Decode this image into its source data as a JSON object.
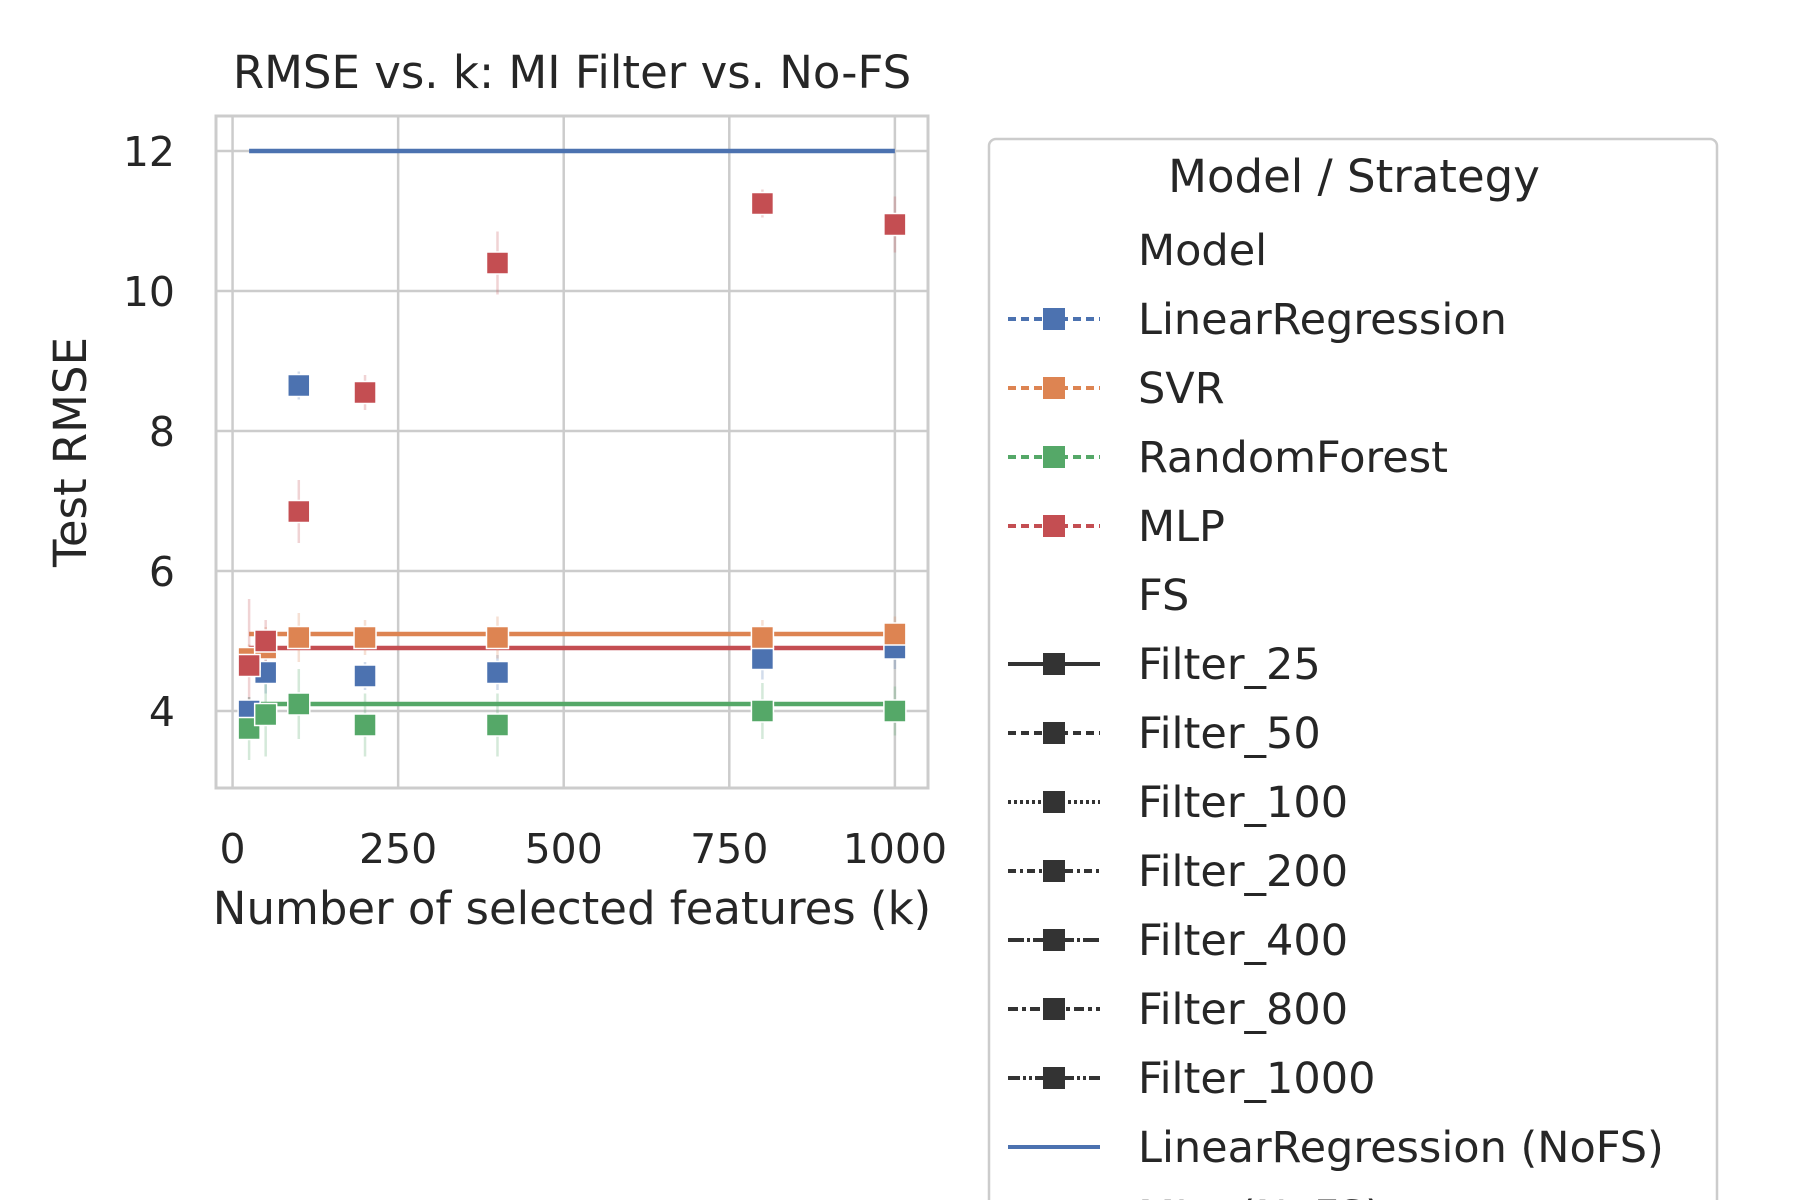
{
  "chart_data": {
    "type": "scatter",
    "title": "RMSE vs. k: MI Filter vs. No-FS",
    "xlabel": "Number of selected features (k)",
    "ylabel": "Test RMSE",
    "xlim": [
      -25,
      1050
    ],
    "ylim": [
      2.9,
      12.5
    ],
    "xticks": [
      0,
      250,
      500,
      750,
      1000
    ],
    "yticks": [
      4,
      6,
      8,
      10,
      12
    ],
    "grid": true,
    "legend_placement": "outside-right",
    "colors": {
      "LinearRegression": "#4c72b0",
      "SVR": "#dd8452",
      "RandomForest": "#55a868",
      "MLP": "#c44e52",
      "FS": "#333333"
    },
    "series": [
      {
        "name": "LinearRegression",
        "x": [
          25,
          50,
          100,
          200,
          400,
          800,
          1000
        ],
        "y": [
          4.0,
          4.55,
          8.65,
          4.5,
          4.55,
          4.75,
          4.9
        ],
        "err": [
          0.2,
          0.3,
          0.2,
          0.2,
          0.25,
          0.3,
          0.3
        ]
      },
      {
        "name": "SVR",
        "x": [
          25,
          50,
          100,
          200,
          400,
          800,
          1000
        ],
        "y": [
          4.75,
          4.9,
          5.05,
          5.05,
          5.05,
          5.05,
          5.1
        ],
        "err": [
          0.2,
          0.3,
          0.35,
          0.25,
          0.3,
          0.25,
          0.25
        ]
      },
      {
        "name": "RandomForest",
        "x": [
          25,
          50,
          100,
          200,
          400,
          800,
          1000
        ],
        "y": [
          3.75,
          3.95,
          4.1,
          3.8,
          3.8,
          4.0,
          4.0
        ],
        "err": [
          0.45,
          0.6,
          0.5,
          0.45,
          0.45,
          0.4,
          0.35
        ]
      },
      {
        "name": "MLP",
        "x": [
          25,
          50,
          100,
          200,
          400,
          800,
          1000
        ],
        "y": [
          4.65,
          5.0,
          6.85,
          8.55,
          10.4,
          11.25,
          10.95
        ],
        "err": [
          0.95,
          0.3,
          0.45,
          0.25,
          0.45,
          0.2,
          0.4
        ]
      }
    ],
    "nofs_lines": [
      {
        "model": "LinearRegression",
        "y": 12.0
      },
      {
        "model": "SVR",
        "y": 5.1
      },
      {
        "model": "RandomForest",
        "y": 4.1
      },
      {
        "model": "MLP",
        "y": 4.9
      }
    ],
    "nofs_x": [
      25,
      1000
    ],
    "legend": {
      "title": "Model / Strategy",
      "entries": [
        {
          "label": "Model",
          "kind": "header"
        },
        {
          "label": "LinearRegression",
          "kind": "marker",
          "color": "#4c72b0",
          "dash": "8,5"
        },
        {
          "label": "SVR",
          "kind": "marker",
          "color": "#dd8452",
          "dash": "8,5"
        },
        {
          "label": "RandomForest",
          "kind": "marker",
          "color": "#55a868",
          "dash": "8,5"
        },
        {
          "label": "MLP",
          "kind": "marker",
          "color": "#c44e52",
          "dash": "8,5"
        },
        {
          "label": "FS",
          "kind": "header"
        },
        {
          "label": "Filter_25",
          "kind": "marker",
          "color": "#333333",
          "dash": "none"
        },
        {
          "label": "Filter_50",
          "kind": "marker",
          "color": "#333333",
          "dash": "8,5"
        },
        {
          "label": "Filter_100",
          "kind": "marker",
          "color": "#333333",
          "dash": "3,3"
        },
        {
          "label": "Filter_200",
          "kind": "marker",
          "color": "#333333",
          "dash": "8,4,3,4"
        },
        {
          "label": "Filter_400",
          "kind": "marker",
          "color": "#333333",
          "dash": "16,3,3,3"
        },
        {
          "label": "Filter_800",
          "kind": "marker",
          "color": "#333333",
          "dash": "10,4,4,4"
        },
        {
          "label": "Filter_1000",
          "kind": "marker",
          "color": "#333333",
          "dash": "12,3,3,3,3,3"
        },
        {
          "label": "LinearRegression (NoFS)",
          "kind": "line",
          "color": "#4c72b0",
          "dash": "none"
        },
        {
          "label": "MLP (NoFS)",
          "kind": "line",
          "color": "#c44e52",
          "dash": "none"
        }
      ]
    }
  }
}
